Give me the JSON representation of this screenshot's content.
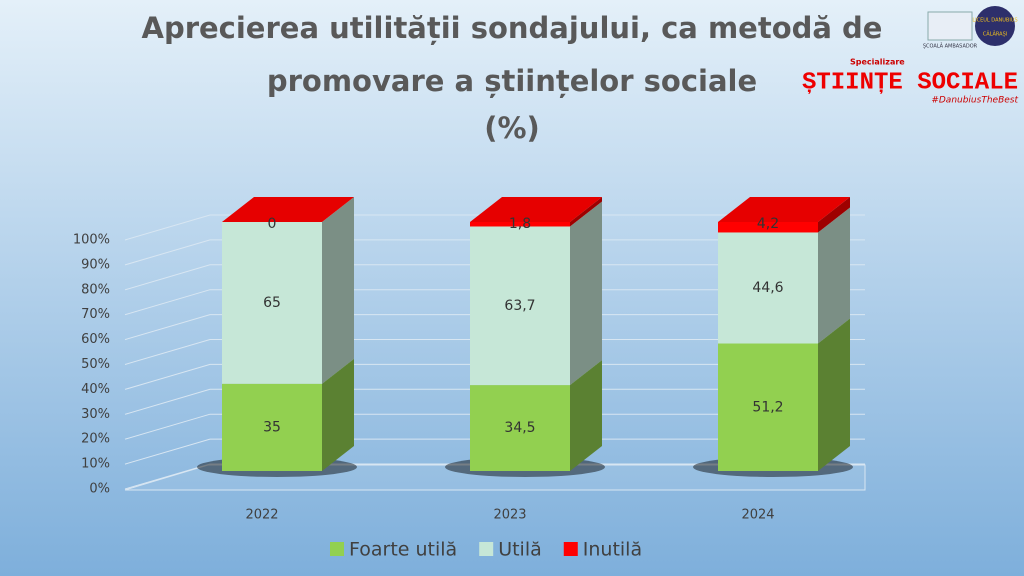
{
  "chart_data": {
    "type": "stacked-bar-3d",
    "title_lines": [
      "Aprecierea utilității sondajului, ca metodă de",
      "promovare a științelor sociale",
      "(%)"
    ],
    "categories": [
      "2022",
      "2023",
      "2024"
    ],
    "series": [
      {
        "name": "Foarte utilă",
        "color": "#92d050",
        "values": [
          35,
          34.5,
          51.2
        ],
        "value_labels": [
          "35",
          "34,5",
          "51,2"
        ]
      },
      {
        "name": "Utilă",
        "color": "#c6e7d7",
        "values": [
          65,
          63.7,
          44.6
        ],
        "value_labels": [
          "65",
          "63,7",
          "44,6"
        ]
      },
      {
        "name": "Inutilă",
        "color": "#ff0000",
        "values": [
          0,
          1.8,
          4.2
        ],
        "value_labels": [
          "0",
          "1,8",
          "4,2"
        ]
      }
    ],
    "ylim": [
      0,
      100
    ],
    "yticks": [
      {
        "value": 0,
        "label": "0%"
      },
      {
        "value": 10,
        "label": "10%"
      },
      {
        "value": 20,
        "label": "20%"
      },
      {
        "value": 30,
        "label": "30%"
      },
      {
        "value": 40,
        "label": "40%"
      },
      {
        "value": 50,
        "label": "50%"
      },
      {
        "value": 60,
        "label": "60%"
      },
      {
        "value": 70,
        "label": "70%"
      },
      {
        "value": 80,
        "label": "80%"
      },
      {
        "value": 90,
        "label": "90%"
      },
      {
        "value": 100,
        "label": "100%"
      }
    ],
    "grid": true,
    "legend": "bottom"
  },
  "logos": {
    "ambassador": "ȘCOALĂ AMBASADOR",
    "school": "LICEUL DANUBIUS",
    "city": "CĂLĂRAȘI",
    "specialization": "Specializare",
    "program": "ȘTIINȚE SOCIALE",
    "hashtag": "#DanubiusTheBest"
  }
}
